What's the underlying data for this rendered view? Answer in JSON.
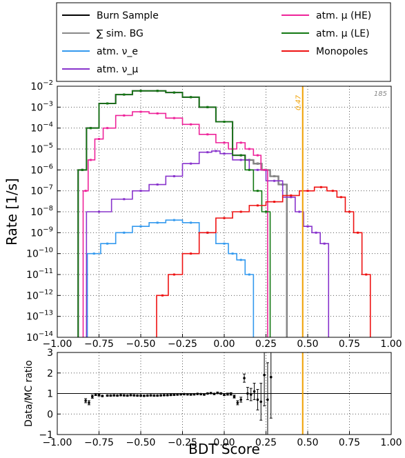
{
  "colors": {
    "burn": "#000000",
    "sim_bg": "#888888",
    "nu_e": "#3399ee",
    "nu_mu": "#8833cc",
    "mu_he": "#ee2299",
    "mu_le": "#117711",
    "monopoles": "#ee1111",
    "cut": "#f0a000"
  },
  "annotations": {
    "run_label": "185",
    "cut_label": "0.47"
  },
  "chart_data": [
    {
      "type": "line",
      "xlabel": "BDT Score",
      "ylabel": "Rate [1/s]",
      "xlim": [
        -1.0,
        1.0
      ],
      "ylim": [
        1e-14,
        0.01
      ],
      "yscale": "log",
      "grid": true,
      "legend_position": "top",
      "x_ticks": [
        "−1.00",
        "−0.75",
        "−0.50",
        "−0.25",
        "0.00",
        "0.25",
        "0.50",
        "0.75",
        "1.00"
      ],
      "y_ticks": [
        {
          "base": "10",
          "exp": "-2"
        },
        {
          "base": "10",
          "exp": "-3"
        },
        {
          "base": "10",
          "exp": "-4"
        },
        {
          "base": "10",
          "exp": "-5"
        },
        {
          "base": "10",
          "exp": "-6"
        },
        {
          "base": "10",
          "exp": "-7"
        },
        {
          "base": "10",
          "exp": "-8"
        },
        {
          "base": "10",
          "exp": "-9"
        },
        {
          "base": "10",
          "exp": "-10"
        },
        {
          "base": "10",
          "exp": "-11"
        },
        {
          "base": "10",
          "exp": "-12"
        },
        {
          "base": "10",
          "exp": "-13"
        },
        {
          "base": "10",
          "exp": "-14"
        }
      ],
      "cut_value": 0.47,
      "series": [
        {
          "name": "Burn Sample",
          "color_key": "burn",
          "x": [
            -0.85,
            -0.8,
            -0.7,
            -0.6,
            -0.5,
            -0.4,
            -0.3,
            -0.2,
            -0.1,
            0.0,
            0.1,
            0.15,
            0.2,
            0.25,
            0.3,
            0.35
          ],
          "y": [
            1e-06,
            0.0001,
            0.0015,
            0.004,
            0.006,
            0.006,
            0.005,
            0.003,
            0.001,
            0.0002,
            5e-06,
            3e-06,
            2e-06,
            1e-06,
            5e-07,
            2e-07
          ]
        },
        {
          "name": "∑ sim. BG",
          "color_key": "sim_bg",
          "x": [
            -0.85,
            -0.8,
            -0.7,
            -0.6,
            -0.5,
            -0.4,
            -0.3,
            -0.2,
            -0.1,
            0.0,
            0.1,
            0.15,
            0.2,
            0.25,
            0.3,
            0.35
          ],
          "y": [
            1e-06,
            0.0001,
            0.0015,
            0.004,
            0.006,
            0.006,
            0.005,
            0.003,
            0.001,
            0.0002,
            5e-06,
            3e-06,
            2e-06,
            1e-06,
            5e-07,
            2e-07
          ]
        },
        {
          "name": "atm. ν_e",
          "color_key": "nu_e",
          "x": [
            -0.78,
            -0.7,
            -0.6,
            -0.5,
            -0.4,
            -0.3,
            -0.2,
            -0.1,
            0.0,
            0.05,
            0.1,
            0.15
          ],
          "y": [
            1e-10,
            3e-10,
            1e-09,
            2e-09,
            3e-09,
            4e-09,
            3e-09,
            1e-09,
            3e-10,
            1e-10,
            5e-11,
            1e-11
          ]
        },
        {
          "name": "atm. ν_μ",
          "color_key": "nu_mu",
          "x": [
            -0.75,
            -0.6,
            -0.5,
            -0.4,
            -0.3,
            -0.2,
            -0.1,
            -0.05,
            0.0,
            0.1,
            0.2,
            0.3,
            0.4,
            0.45,
            0.5,
            0.55,
            0.6
          ],
          "y": [
            1e-08,
            4e-08,
            1e-07,
            2e-07,
            5e-07,
            2e-06,
            7e-06,
            8e-06,
            6e-06,
            3e-06,
            1e-06,
            3e-07,
            5e-08,
            1e-08,
            2e-09,
            1e-09,
            3e-10
          ]
        },
        {
          "name": "atm. μ (HE)",
          "color_key": "mu_he",
          "x": [
            -0.83,
            -0.8,
            -0.75,
            -0.7,
            -0.6,
            -0.5,
            -0.4,
            -0.3,
            -0.2,
            -0.1,
            0.0,
            0.05,
            0.1,
            0.15,
            0.2,
            0.24
          ],
          "y": [
            1e-07,
            3e-06,
            3e-05,
            0.0001,
            0.0004,
            0.0006,
            0.0005,
            0.0003,
            0.00015,
            5e-05,
            2e-05,
            1e-05,
            2e-05,
            1e-05,
            5e-06,
            1e-06
          ]
        },
        {
          "name": "atm. μ (LE)",
          "color_key": "mu_le",
          "x": [
            -0.85,
            -0.8,
            -0.7,
            -0.6,
            -0.5,
            -0.4,
            -0.3,
            -0.2,
            -0.1,
            0.0,
            0.1,
            0.15,
            0.2,
            0.25
          ],
          "y": [
            1e-06,
            0.0001,
            0.0015,
            0.004,
            0.006,
            0.006,
            0.005,
            0.003,
            0.001,
            0.0002,
            5e-06,
            1e-06,
            1e-07,
            1e-08
          ]
        },
        {
          "name": "Monopoles",
          "color_key": "monopoles",
          "x": [
            -0.37,
            -0.3,
            -0.2,
            -0.1,
            0.0,
            0.1,
            0.2,
            0.3,
            0.4,
            0.5,
            0.58,
            0.65,
            0.7,
            0.75,
            0.8,
            0.85
          ],
          "y": [
            1e-12,
            1e-11,
            1e-10,
            1e-09,
            5e-09,
            1e-08,
            2e-08,
            3e-08,
            6e-08,
            1e-07,
            1.5e-07,
            1e-07,
            5e-08,
            1e-08,
            1e-09,
            1e-11
          ]
        }
      ]
    },
    {
      "type": "scatter",
      "xlabel": "BDT Score",
      "ylabel": "Data/MC ratio",
      "xlim": [
        -1.0,
        1.0
      ],
      "ylim": [
        -1,
        3
      ],
      "grid": true,
      "x_ticks": [
        "−1.00",
        "−0.75",
        "−0.50",
        "−0.25",
        "0.00",
        "0.25",
        "0.50",
        "0.75",
        "1.00"
      ],
      "y_ticks": [
        "3",
        "2",
        "1",
        "0",
        "−1"
      ],
      "reference_line": 1,
      "cut_value": 0.47,
      "series": [
        {
          "name": "",
          "x": [
            -0.83,
            -0.81,
            -0.79,
            -0.77,
            -0.75,
            -0.73,
            -0.7,
            -0.68,
            -0.66,
            -0.64,
            -0.62,
            -0.6,
            -0.58,
            -0.56,
            -0.54,
            -0.52,
            -0.5,
            -0.48,
            -0.46,
            -0.44,
            -0.42,
            -0.4,
            -0.38,
            -0.36,
            -0.34,
            -0.32,
            -0.3,
            -0.28,
            -0.26,
            -0.24,
            -0.22,
            -0.2,
            -0.18,
            -0.16,
            -0.14,
            -0.12,
            -0.1,
            -0.08,
            -0.06,
            -0.04,
            -0.02,
            0.0,
            0.02,
            0.04,
            0.06,
            0.08,
            0.1,
            0.12,
            0.14,
            0.16,
            0.18,
            0.2,
            0.22,
            0.24,
            0.26,
            0.28
          ],
          "y": [
            0.65,
            0.55,
            0.85,
            0.95,
            0.92,
            0.88,
            0.9,
            0.9,
            0.91,
            0.9,
            0.92,
            0.91,
            0.9,
            0.92,
            0.91,
            0.9,
            0.9,
            0.89,
            0.9,
            0.91,
            0.9,
            0.9,
            0.91,
            0.92,
            0.92,
            0.93,
            0.94,
            0.95,
            0.96,
            0.97,
            0.96,
            0.95,
            0.96,
            0.98,
            0.97,
            0.95,
            1.0,
            1.02,
            0.98,
            1.03,
            1.0,
            0.95,
            0.97,
            0.98,
            0.85,
            0.55,
            0.7,
            1.75,
            1.0,
            0.95,
            1.1,
            0.7,
            0.6,
            1.9,
            0.7,
            1.8
          ],
          "yerr": [
            0.1,
            0.1,
            0.08,
            0.05,
            0.04,
            0.03,
            0.03,
            0.03,
            0.03,
            0.03,
            0.03,
            0.03,
            0.03,
            0.03,
            0.03,
            0.03,
            0.03,
            0.03,
            0.03,
            0.03,
            0.03,
            0.03,
            0.03,
            0.03,
            0.03,
            0.03,
            0.03,
            0.03,
            0.03,
            0.03,
            0.03,
            0.03,
            0.03,
            0.03,
            0.03,
            0.03,
            0.03,
            0.03,
            0.03,
            0.04,
            0.04,
            0.05,
            0.05,
            0.06,
            0.07,
            0.1,
            0.12,
            0.2,
            0.3,
            0.3,
            0.4,
            0.5,
            0.9,
            1.5,
            1.8,
            2.0
          ]
        }
      ]
    }
  ]
}
